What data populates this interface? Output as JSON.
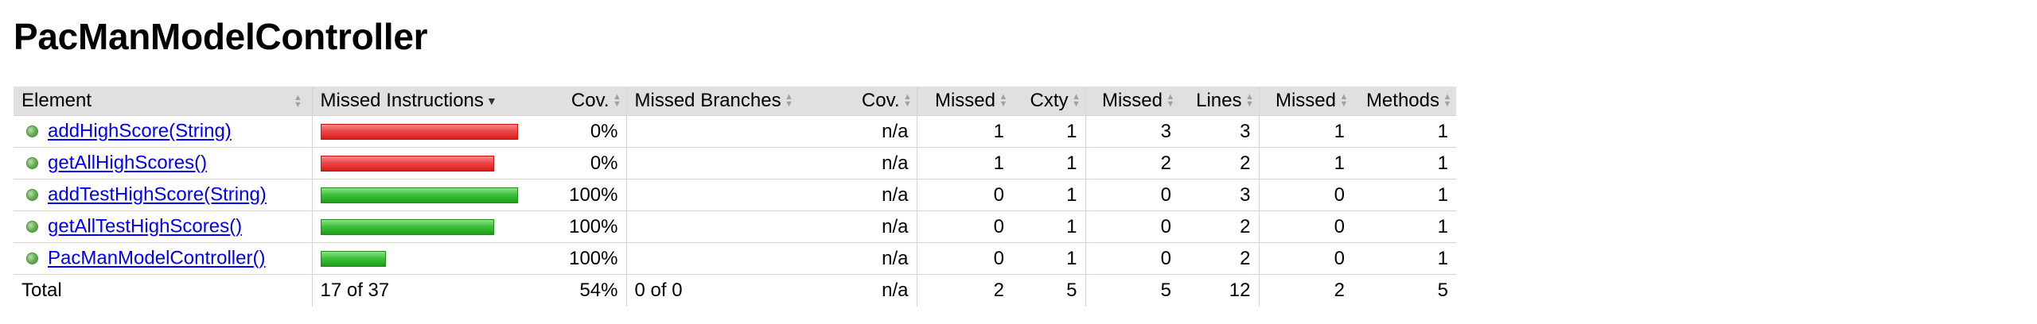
{
  "title": "PacManModelController",
  "columns": [
    {
      "label": "Element",
      "sort": "both"
    },
    {
      "label": "Missed Instructions",
      "sort": "desc"
    },
    {
      "label": "Cov.",
      "sort": "both"
    },
    {
      "label": "Missed Branches",
      "sort": "both"
    },
    {
      "label": "Cov.",
      "sort": "both"
    },
    {
      "label": "Missed",
      "sort": "both"
    },
    {
      "label": "Cxty",
      "sort": "both"
    },
    {
      "label": "Missed",
      "sort": "both"
    },
    {
      "label": "Lines",
      "sort": "both"
    },
    {
      "label": "Missed",
      "sort": "both"
    },
    {
      "label": "Methods",
      "sort": "both"
    }
  ],
  "rows": [
    {
      "element": "addHighScore(String)",
      "bar_color": "red",
      "bar_fraction": 1.0,
      "instr_cov": "0%",
      "branch_cov": "n/a",
      "missed_cxty": "1",
      "cxty": "1",
      "missed_lines": "3",
      "lines": "3",
      "missed_methods": "1",
      "methods": "1"
    },
    {
      "element": "getAllHighScores()",
      "bar_color": "red",
      "bar_fraction": 0.88,
      "instr_cov": "0%",
      "branch_cov": "n/a",
      "missed_cxty": "1",
      "cxty": "1",
      "missed_lines": "2",
      "lines": "2",
      "missed_methods": "1",
      "methods": "1"
    },
    {
      "element": "addTestHighScore(String)",
      "bar_color": "green",
      "bar_fraction": 1.0,
      "instr_cov": "100%",
      "branch_cov": "n/a",
      "missed_cxty": "0",
      "cxty": "1",
      "missed_lines": "0",
      "lines": "3",
      "missed_methods": "0",
      "methods": "1"
    },
    {
      "element": "getAllTestHighScores()",
      "bar_color": "green",
      "bar_fraction": 0.88,
      "instr_cov": "100%",
      "branch_cov": "n/a",
      "missed_cxty": "0",
      "cxty": "1",
      "missed_lines": "0",
      "lines": "2",
      "missed_methods": "0",
      "methods": "1"
    },
    {
      "element": "PacManModelController()",
      "bar_color": "green",
      "bar_fraction": 0.33,
      "instr_cov": "100%",
      "branch_cov": "n/a",
      "missed_cxty": "0",
      "cxty": "1",
      "missed_lines": "0",
      "lines": "2",
      "missed_methods": "0",
      "methods": "1"
    }
  ],
  "total": {
    "label": "Total",
    "missed_instructions": "17 of 37",
    "instr_cov": "54%",
    "missed_branches": "0 of 0",
    "branch_cov": "n/a",
    "missed_cxty": "2",
    "cxty": "5",
    "missed_lines": "5",
    "lines": "12",
    "missed_methods": "2",
    "methods": "5"
  },
  "colors": {
    "header_bg": "#e0e0e0",
    "link": "#0000ee",
    "bar_red": "#e53b3b",
    "bar_green": "#36b934"
  }
}
